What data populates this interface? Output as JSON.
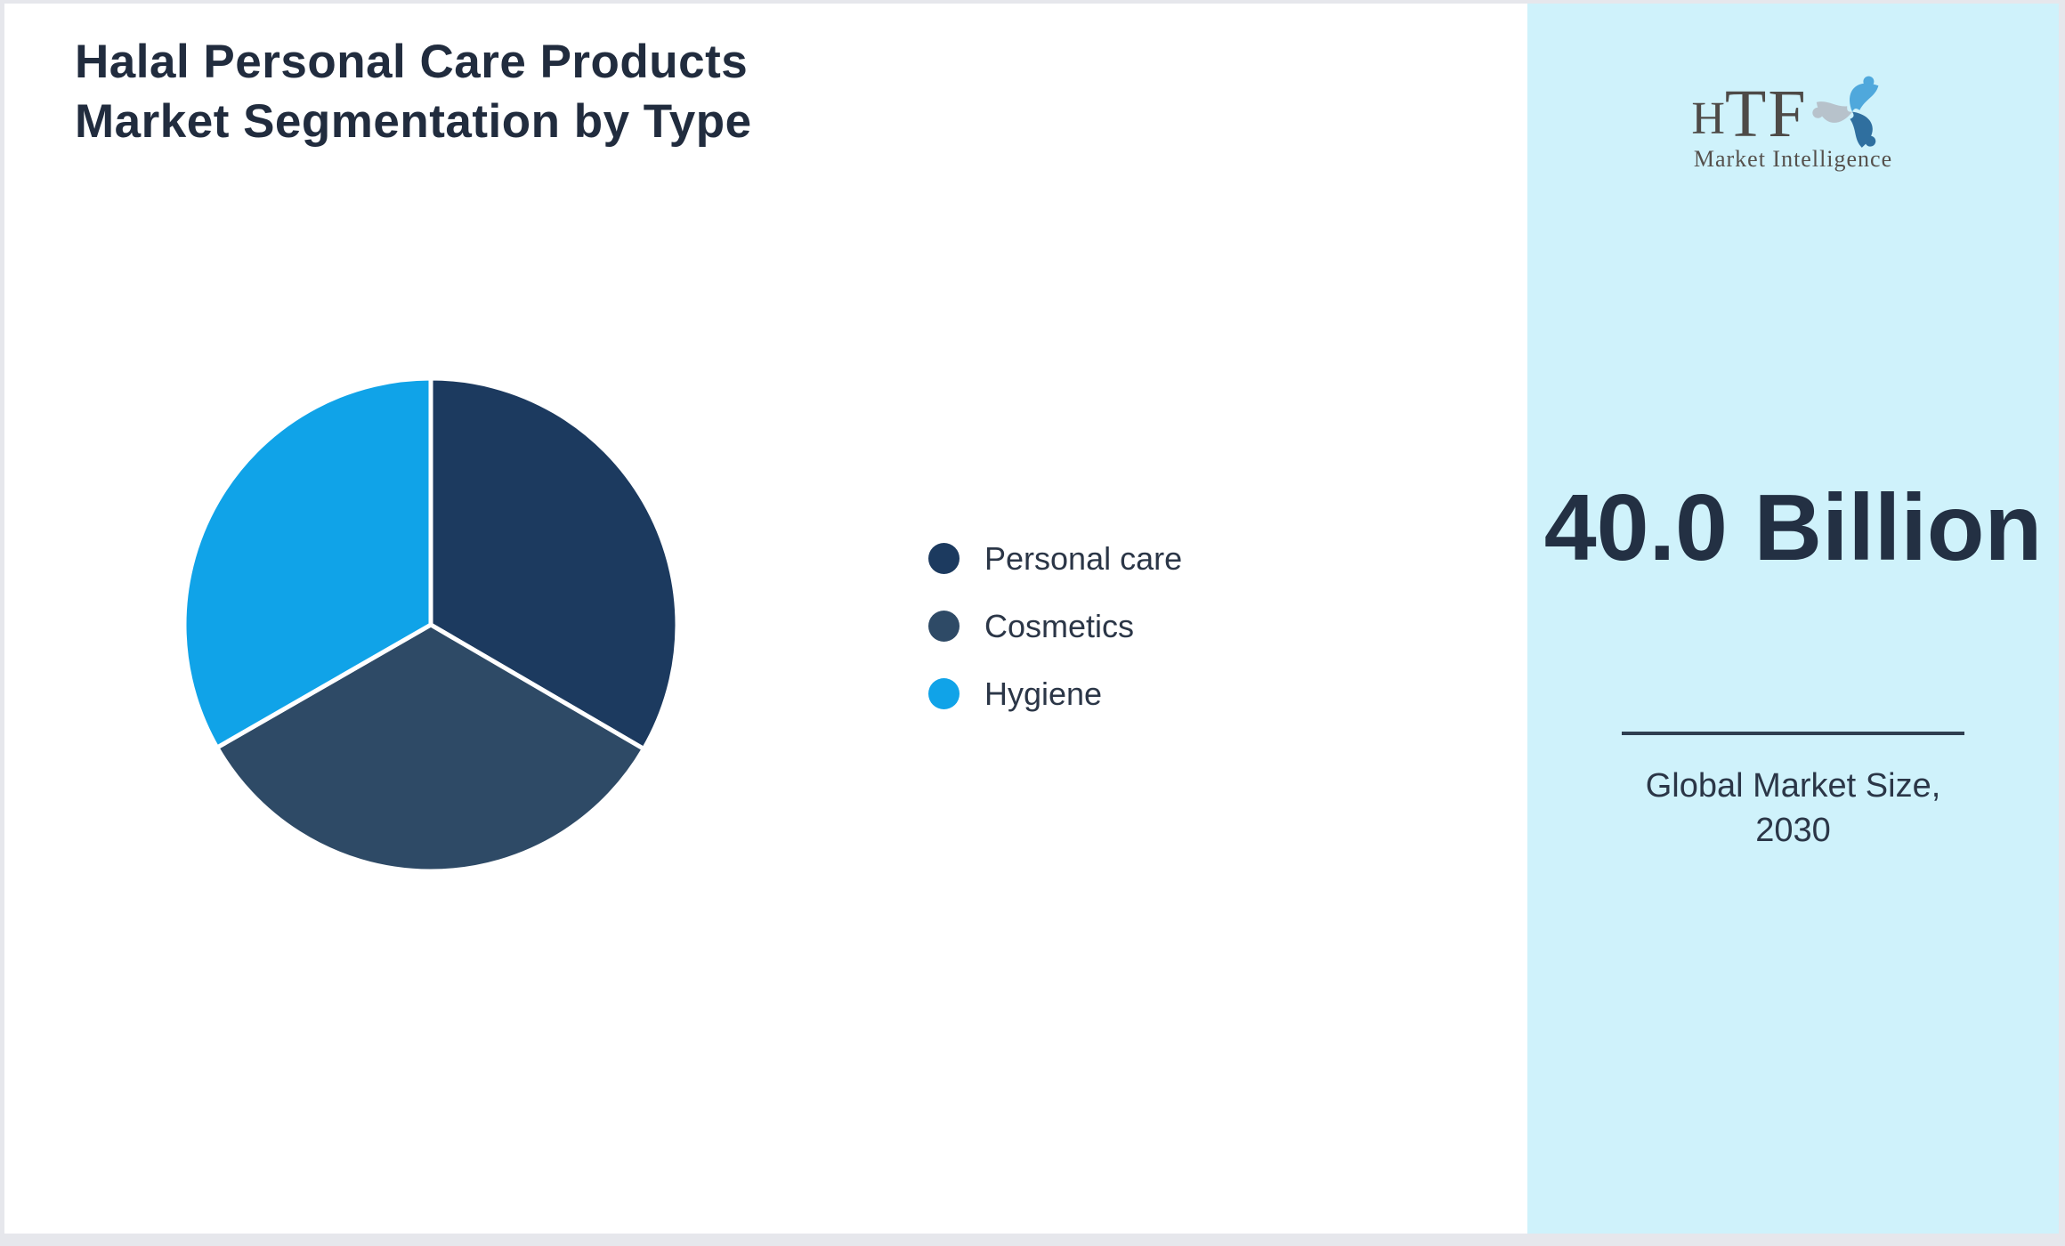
{
  "header": {
    "title_line1": "Halal Personal Care Products",
    "title_line2": "Market Segmentation by Type"
  },
  "chart_data": {
    "type": "pie",
    "title": "Halal Personal Care Products Market Segmentation by Type",
    "segments": [
      {
        "label": "Personal care",
        "value": 33.4,
        "color": "#1C3A5F"
      },
      {
        "label": "Cosmetics",
        "value": 33.3,
        "color": "#2E4A66"
      },
      {
        "label": "Hygiene",
        "value": 33.3,
        "color": "#10A3E8"
      }
    ],
    "units": "percent share (estimated, equal thirds)",
    "start_angle_deg": 0,
    "direction": "clockwise",
    "legend_position": "right",
    "slice_divider_color": "#FFFFFF"
  },
  "sidebar": {
    "logo": {
      "h": "H",
      "tf": "TF",
      "subtext": "Market Intelligence",
      "icon_colors": {
        "top": "#4FA8DC",
        "right": "#2F6F9F",
        "left": "#B7C2CB"
      }
    },
    "market_size_value": "40.0 Billion",
    "caption_line1": "Global Market Size,",
    "caption_line2": "2030",
    "background": "#CFF2FB"
  },
  "frame": {
    "background": "#FFFFFF",
    "outer_border": "#E6E7EC",
    "title_color": "#212C3E",
    "text_color": "#2B3647"
  }
}
